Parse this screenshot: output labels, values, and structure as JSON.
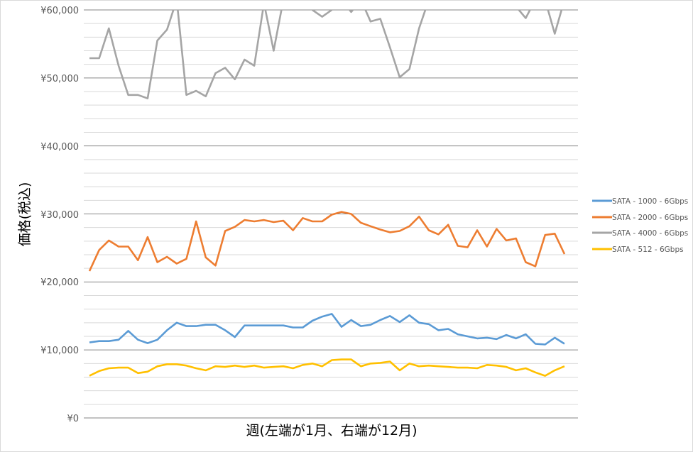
{
  "chart_data": {
    "type": "line",
    "title": "",
    "xlabel": "週(左端が1月、右端が12月)",
    "ylabel": "価格(税込)",
    "ylim": [
      0,
      60000
    ],
    "y_major_step": 10000,
    "y_minor_step": 2000,
    "y_tick_labels": [
      "¥0",
      "¥10,000",
      "¥20,000",
      "¥30,000",
      "¥40,000",
      "¥50,000",
      "¥60,000"
    ],
    "grid": true,
    "legend_position": "right",
    "x": [
      1,
      2,
      3,
      4,
      5,
      6,
      7,
      8,
      9,
      10,
      11,
      12,
      13,
      14,
      15,
      16,
      17,
      18,
      19,
      20,
      21,
      22,
      23,
      24,
      25,
      26,
      27,
      28,
      29,
      30,
      31,
      32,
      33,
      34,
      35,
      36,
      37,
      38,
      39,
      40,
      41,
      42,
      43,
      44,
      45,
      46,
      47,
      48,
      49,
      50
    ],
    "series": [
      {
        "name": "SATA - 1000 - 6Gbps",
        "color": "#5b9bd5",
        "values": [
          11100,
          11300,
          11300,
          11500,
          12800,
          11500,
          11000,
          11500,
          12900,
          14000,
          13500,
          13500,
          13700,
          13700,
          12900,
          11900,
          13600,
          13600,
          13600,
          13600,
          13600,
          13300,
          13300,
          14300,
          14900,
          15300,
          13400,
          14400,
          13500,
          13700,
          14400,
          15000,
          14100,
          15100,
          14000,
          13800,
          12900,
          13100,
          12300,
          12000,
          11700,
          11800,
          11600,
          12200,
          11700,
          12300,
          10900,
          10800,
          11800,
          10900
        ]
      },
      {
        "name": "SATA - 2000 - 6Gbps",
        "color": "#ed7d31",
        "values": [
          21600,
          24700,
          26100,
          25200,
          25200,
          23200,
          26600,
          22900,
          23700,
          22700,
          23400,
          28900,
          23600,
          22400,
          27500,
          28100,
          29100,
          28900,
          29100,
          28800,
          29000,
          27600,
          29400,
          28900,
          28900,
          29900,
          30300,
          30000,
          28700,
          28200,
          27700,
          27300,
          27500,
          28200,
          29600,
          27600,
          27000,
          28400,
          25300,
          25100,
          27600,
          25200,
          27800,
          26100,
          26400,
          22900,
          22300,
          26900,
          27100,
          24100
        ]
      },
      {
        "name": "SATA - 4000 - 6Gbps",
        "color": "#a5a5a5",
        "values": [
          52900,
          52900,
          57300,
          51800,
          47500,
          47500,
          47000,
          55500,
          57100,
          61500,
          47500,
          48100,
          47300,
          50700,
          51500,
          49800,
          52700,
          51800,
          61000,
          54000,
          61500,
          61500,
          61500,
          60000,
          59000,
          60000,
          61500,
          59700,
          61500,
          58300,
          58700,
          54500,
          50100,
          51300,
          57300,
          61500,
          61500,
          61500,
          61500,
          61500,
          61500,
          61500,
          61500,
          61500,
          60500,
          58800,
          61500,
          61500,
          56500,
          61500
        ]
      },
      {
        "name": "SATA - 512 - 6Gbps",
        "color": "#ffc000",
        "values": [
          6200,
          6900,
          7300,
          7400,
          7400,
          6600,
          6800,
          7600,
          7900,
          7900,
          7700,
          7300,
          7000,
          7600,
          7500,
          7700,
          7500,
          7700,
          7400,
          7500,
          7600,
          7300,
          7800,
          8000,
          7600,
          8500,
          8600,
          8600,
          7600,
          8000,
          8100,
          8300,
          7000,
          8000,
          7600,
          7700,
          7600,
          7500,
          7400,
          7400,
          7300,
          7800,
          7700,
          7500,
          7000,
          7300,
          6700,
          6200,
          7000,
          7600
        ]
      }
    ]
  },
  "legend": {
    "items": [
      {
        "label": "SATA - 1000 - 6Gbps",
        "color": "#5b9bd5"
      },
      {
        "label": "SATA - 2000 - 6Gbps",
        "color": "#ed7d31"
      },
      {
        "label": "SATA - 4000 - 6Gbps",
        "color": "#a5a5a5"
      },
      {
        "label": "SATA - 512 - 6Gbps",
        "color": "#ffc000"
      }
    ]
  },
  "axes": {
    "y_title": "価格(税込)",
    "x_title": "週(左端が1月、右端が12月)",
    "y_ticks": [
      {
        "label": "¥60,000"
      },
      {
        "label": "¥50,000"
      },
      {
        "label": "¥40,000"
      },
      {
        "label": "¥30,000"
      },
      {
        "label": "¥20,000"
      },
      {
        "label": "¥10,000"
      },
      {
        "label": "¥0"
      }
    ]
  }
}
